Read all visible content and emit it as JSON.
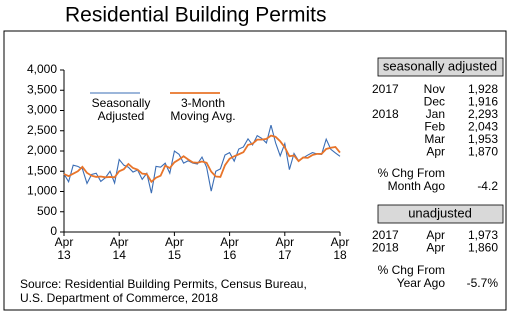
{
  "chart_data": {
    "type": "line",
    "title": "Residential Building Permits",
    "categories": [
      "Apr 13",
      null,
      null,
      null,
      null,
      null,
      null,
      null,
      null,
      null,
      null,
      null,
      "Apr 14",
      null,
      null,
      null,
      null,
      null,
      null,
      null,
      null,
      null,
      null,
      null,
      "Apr 15",
      null,
      null,
      null,
      null,
      null,
      null,
      null,
      null,
      null,
      null,
      null,
      "Apr 16",
      null,
      null,
      null,
      null,
      null,
      null,
      null,
      null,
      null,
      null,
      null,
      "Apr 17",
      null,
      null,
      null,
      null,
      null,
      null,
      null,
      null,
      null,
      null,
      null,
      "Apr 18"
    ],
    "series": [
      {
        "name": "Seasonally Adjusted",
        "color": "#3a6db5",
        "values": [
          1430,
          1240,
          1650,
          1620,
          1560,
          1200,
          1420,
          1450,
          1250,
          1340,
          1500,
          1210,
          1790,
          1650,
          1600,
          1480,
          1530,
          1300,
          1450,
          960,
          1620,
          1600,
          1700,
          1450,
          2000,
          1920,
          1700,
          1760,
          1700,
          1680,
          1850,
          1600,
          1010,
          1500,
          1560,
          1900,
          1960,
          1750,
          2050,
          2100,
          2300,
          2150,
          2380,
          2310,
          2200,
          2640,
          2200,
          1880,
          2180,
          1540,
          1940,
          1760,
          1830,
          1900,
          1960,
          1928,
          1916,
          2293,
          2043,
          1953,
          1870
        ]
      },
      {
        "name": "3-Month Moving Avg.",
        "color": "#e8742a",
        "values": [
          1430,
          1380,
          1440,
          1500,
          1610,
          1460,
          1390,
          1360,
          1370,
          1350,
          1360,
          1350,
          1500,
          1550,
          1680,
          1580,
          1540,
          1440,
          1430,
          1240,
          1340,
          1390,
          1640,
          1580,
          1720,
          1790,
          1870,
          1790,
          1720,
          1710,
          1740,
          1710,
          1490,
          1370,
          1360,
          1650,
          1810,
          1870,
          1920,
          1970,
          2150,
          2180,
          2280,
          2280,
          2300,
          2380,
          2350,
          2240,
          2090,
          1870,
          1890,
          1750,
          1840,
          1830,
          1900,
          1930,
          1930,
          2050,
          2080,
          2100,
          1960
        ]
      }
    ],
    "ylim": [
      0,
      4000
    ],
    "yticks": [
      0,
      {
        "value": 500,
        "label": "500"
      },
      {
        "value": 1000,
        "label": "1,000"
      },
      {
        "value": 1500,
        "label": "1,500"
      },
      {
        "value": 2000,
        "label": "2,000"
      },
      {
        "value": 2500,
        "label": "2,500"
      },
      {
        "value": 3000,
        "label": "3,000"
      },
      {
        "value": 3500,
        "label": "3,500"
      },
      {
        "value": 4000,
        "label": "4,000"
      }
    ]
  },
  "panel": {
    "sa_header": "seasonally adjusted",
    "sa_rows": [
      {
        "year": "2017",
        "month": "Nov",
        "value": "1,928"
      },
      {
        "year": null,
        "month": "Dec",
        "value": "1,916"
      },
      {
        "year": "2018",
        "month": "Jan",
        "value": "2,293"
      },
      {
        "year": null,
        "month": "Feb",
        "value": "2,043"
      },
      {
        "year": null,
        "month": "Mar",
        "value": "1,953"
      },
      {
        "year": null,
        "month": "Apr",
        "value": "1,870"
      }
    ],
    "sa_chg_label": [
      "% Chg From",
      "Month Ago"
    ],
    "sa_chg_value": "-4.2",
    "un_header": "unadjusted",
    "un_rows": [
      {
        "year": "2017",
        "month": "Apr",
        "value": "1,973"
      },
      {
        "year": "2018",
        "month": "Apr",
        "value": "1,860"
      }
    ],
    "un_chg_label": [
      "% Chg From",
      "Year Ago"
    ],
    "un_chg_value": "-5.7%"
  },
  "source": [
    "Source: Residential Building Permits, Census Bureau,",
    "U.S. Department of Commerce, 2018"
  ]
}
